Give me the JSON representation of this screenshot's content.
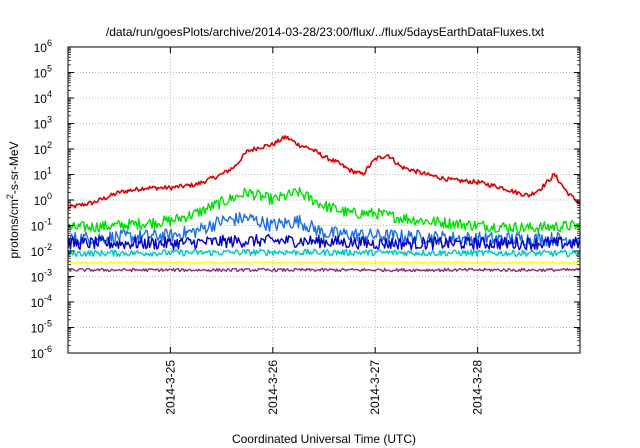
{
  "chart_data": {
    "type": "line",
    "title": "/data/run/goesPlots/archive/2014-03-28/23:00/flux/../flux/5daysEarthDataFluxes.txt",
    "xlabel": "Coordinated Universal Time (UTC)",
    "ylabel": "protons/cm²-s-sr-MeV",
    "y_scale": "log",
    "ylim": [
      1e-06,
      1000000.0
    ],
    "xlim": [
      "2014-03-24 00:00",
      "2014-03-29 00:00"
    ],
    "x_ticks": [
      "2014-3-25",
      "2014-3-26",
      "2014-3-27",
      "2014-3-28"
    ],
    "y_ticks": [
      {
        "value": 1e-06,
        "base": "10",
        "exp": "-6"
      },
      {
        "value": 1e-05,
        "base": "10",
        "exp": "-5"
      },
      {
        "value": 0.0001,
        "base": "10",
        "exp": "-4"
      },
      {
        "value": 0.001,
        "base": "10",
        "exp": "-3"
      },
      {
        "value": 0.01,
        "base": "10",
        "exp": "-2"
      },
      {
        "value": 0.1,
        "base": "10",
        "exp": "-1"
      },
      {
        "value": 1,
        "base": "10",
        "exp": "0"
      },
      {
        "value": 10,
        "base": "10",
        "exp": "1"
      },
      {
        "value": 100,
        "base": "10",
        "exp": "2"
      },
      {
        "value": 1000,
        "base": "10",
        "exp": "3"
      },
      {
        "value": 10000,
        "base": "10",
        "exp": "4"
      },
      {
        "value": 100000,
        "base": "10",
        "exp": "5"
      },
      {
        "value": 1000000,
        "base": "10",
        "exp": "6"
      }
    ],
    "grid": true,
    "legend": "none",
    "series": [
      {
        "color": "#e00000",
        "x": [
          "2014-03-24 00:00",
          "2014-03-24 06:00",
          "2014-03-24 12:00",
          "2014-03-24 18:00",
          "2014-03-25 00:00",
          "2014-03-25 06:00",
          "2014-03-25 12:00",
          "2014-03-25 15:00",
          "2014-03-25 18:00",
          "2014-03-25 21:00",
          "2014-03-26 00:00",
          "2014-03-26 03:00",
          "2014-03-26 06:00",
          "2014-03-26 09:00",
          "2014-03-26 12:00",
          "2014-03-26 15:00",
          "2014-03-26 18:00",
          "2014-03-26 21:00",
          "2014-03-27 00:00",
          "2014-03-27 03:00",
          "2014-03-27 06:00",
          "2014-03-27 12:00",
          "2014-03-27 18:00",
          "2014-03-28 00:00",
          "2014-03-28 06:00",
          "2014-03-28 09:00",
          "2014-03-28 12:00",
          "2014-03-28 15:00",
          "2014-03-28 18:00",
          "2014-03-28 21:00",
          "2014-03-29 00:00"
        ],
        "y": [
          0.5,
          0.8,
          2,
          3,
          3,
          4,
          10,
          20,
          80,
          120,
          150,
          300,
          150,
          100,
          50,
          30,
          15,
          10,
          40,
          60,
          20,
          10,
          6,
          5,
          3,
          2,
          1.5,
          3,
          10,
          2,
          0.7
        ]
      },
      {
        "color": "#00e000",
        "x": [
          "2014-03-24 00:00",
          "2014-03-24 12:00",
          "2014-03-25 00:00",
          "2014-03-25 06:00",
          "2014-03-25 12:00",
          "2014-03-25 18:00",
          "2014-03-26 00:00",
          "2014-03-26 06:00",
          "2014-03-26 12:00",
          "2014-03-26 18:00",
          "2014-03-27 00:00",
          "2014-03-27 06:00",
          "2014-03-27 12:00",
          "2014-03-28 00:00",
          "2014-03-28 12:00",
          "2014-03-29 00:00"
        ],
        "y": [
          0.08,
          0.1,
          0.15,
          0.3,
          0.8,
          2,
          1,
          2,
          0.6,
          0.3,
          0.3,
          0.2,
          0.15,
          0.1,
          0.08,
          0.1
        ]
      },
      {
        "color": "#1e6fe8",
        "x": [
          "2014-03-24 00:00",
          "2014-03-24 12:00",
          "2014-03-25 00:00",
          "2014-03-25 06:00",
          "2014-03-25 12:00",
          "2014-03-25 18:00",
          "2014-03-26 00:00",
          "2014-03-26 06:00",
          "2014-03-26 12:00",
          "2014-03-27 00:00",
          "2014-03-27 12:00",
          "2014-03-28 00:00",
          "2014-03-28 12:00",
          "2014-03-29 00:00"
        ],
        "y": [
          0.03,
          0.035,
          0.04,
          0.06,
          0.15,
          0.2,
          0.1,
          0.15,
          0.05,
          0.04,
          0.035,
          0.03,
          0.03,
          0.03
        ]
      },
      {
        "color": "#0000c8",
        "x": [
          "2014-03-24 00:00",
          "2014-03-25 00:00",
          "2014-03-25 18:00",
          "2014-03-26 06:00",
          "2014-03-27 00:00",
          "2014-03-28 00:00",
          "2014-03-29 00:00"
        ],
        "y": [
          0.02,
          0.02,
          0.025,
          0.025,
          0.02,
          0.02,
          0.02
        ]
      },
      {
        "color": "#00c8c8",
        "x": [
          "2014-03-24 00:00",
          "2014-03-26 00:00",
          "2014-03-29 00:00"
        ],
        "y": [
          0.008,
          0.009,
          0.008
        ]
      },
      {
        "color": "#ffff00",
        "x": [
          "2014-03-24 00:00",
          "2014-03-29 00:00"
        ],
        "y": [
          0.0035,
          0.0035
        ]
      },
      {
        "color": "#8b2d7a",
        "x": [
          "2014-03-24 00:00",
          "2014-03-29 00:00"
        ],
        "y": [
          0.0018,
          0.0018
        ]
      }
    ]
  }
}
